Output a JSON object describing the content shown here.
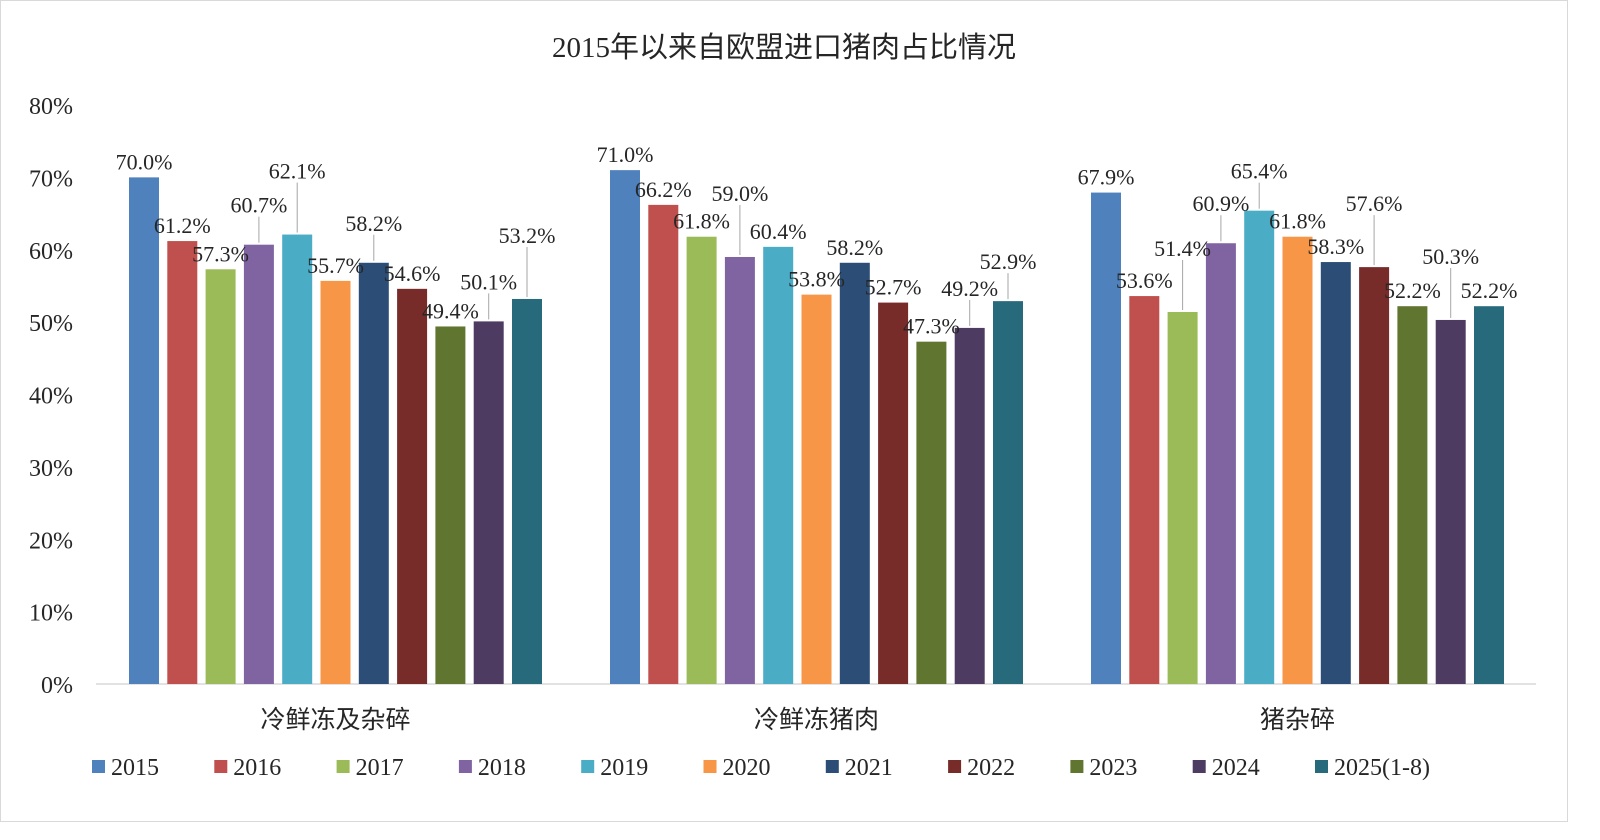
{
  "chart_data": {
    "type": "bar",
    "title": "2015年以来自欧盟进口猪肉占比情况",
    "xlabel": "",
    "ylabel": "",
    "ylim": [
      0,
      80
    ],
    "yticks": [
      "0%",
      "10%",
      "20%",
      "30%",
      "40%",
      "50%",
      "60%",
      "70%",
      "80%"
    ],
    "grid": false,
    "legend_position": "bottom",
    "categories": [
      "冷鲜冻及杂碎",
      "冷鲜冻猪肉",
      "猪杂碎"
    ],
    "series": [
      {
        "name": "2015",
        "color": "#4f81bd",
        "values": [
          70.0,
          71.0,
          67.9
        ]
      },
      {
        "name": "2016",
        "color": "#c0504d",
        "values": [
          61.2,
          66.2,
          53.6
        ]
      },
      {
        "name": "2017",
        "color": "#9bbb59",
        "values": [
          57.3,
          61.8,
          51.4
        ]
      },
      {
        "name": "2018",
        "color": "#8064a2",
        "values": [
          60.7,
          59.0,
          60.9
        ]
      },
      {
        "name": "2019",
        "color": "#4bacc6",
        "values": [
          62.1,
          60.4,
          65.4
        ]
      },
      {
        "name": "2020",
        "color": "#f79646",
        "values": [
          55.7,
          53.8,
          61.8
        ]
      },
      {
        "name": "2021",
        "color": "#2c4d75",
        "values": [
          58.2,
          58.2,
          58.3
        ]
      },
      {
        "name": "2022",
        "color": "#772c2a",
        "values": [
          54.6,
          52.7,
          57.6
        ]
      },
      {
        "name": "2023",
        "color": "#5f7530",
        "values": [
          49.4,
          47.3,
          52.2
        ]
      },
      {
        "name": "2024",
        "color": "#4d3b62",
        "values": [
          50.1,
          49.2,
          50.3
        ]
      },
      {
        "name": "2025(1-8)",
        "color": "#276a7c",
        "values": [
          53.2,
          52.9,
          52.2
        ]
      }
    ]
  }
}
